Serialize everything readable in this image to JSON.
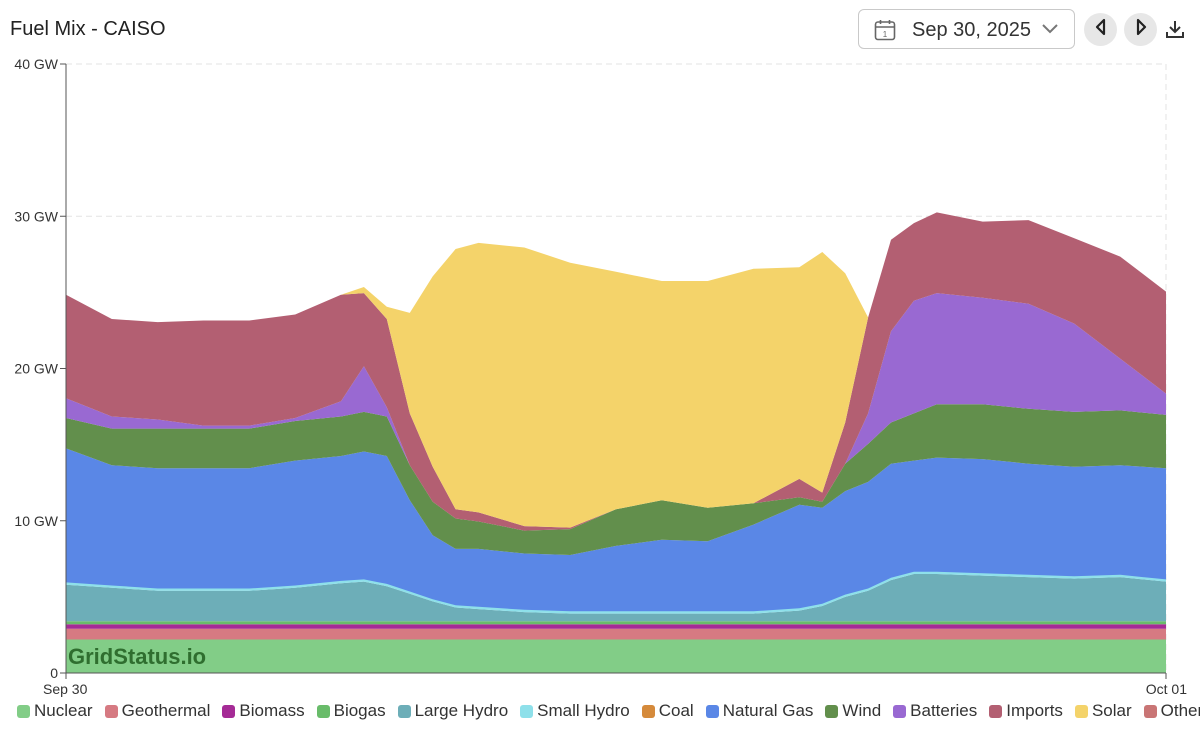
{
  "header": {
    "title": "Fuel Mix - CAISO",
    "date": "Sep 30, 2025"
  },
  "watermark": "GridStatus.io",
  "chart_data": {
    "type": "area",
    "stacked": true,
    "title": "Fuel Mix - CAISO",
    "xlabel": "",
    "ylabel": "",
    "ylim": [
      0,
      40
    ],
    "x_hours": [
      0,
      1,
      2,
      3,
      4,
      5,
      6,
      6.5,
      7,
      7.5,
      8,
      8.5,
      9,
      10,
      11,
      12,
      13,
      14,
      15,
      16,
      16.5,
      17,
      17.5,
      18,
      18.5,
      19,
      20,
      21,
      22,
      23,
      24
    ],
    "x_tick_labels": [
      "Sep 30",
      "Oct 01"
    ],
    "y_tick_labels": [
      "0",
      "10 GW",
      "20 GW",
      "30 GW",
      "40 GW"
    ],
    "y_tick_values": [
      0,
      10,
      20,
      30,
      40
    ],
    "gridlines": true,
    "legend_position": "bottom",
    "series": [
      {
        "name": "Nuclear",
        "color": "#82cd87",
        "values": [
          2.2,
          2.2,
          2.2,
          2.2,
          2.2,
          2.2,
          2.2,
          2.2,
          2.2,
          2.2,
          2.2,
          2.2,
          2.2,
          2.2,
          2.2,
          2.2,
          2.2,
          2.2,
          2.2,
          2.2,
          2.2,
          2.2,
          2.2,
          2.2,
          2.2,
          2.2,
          2.2,
          2.2,
          2.2,
          2.2,
          2.2
        ]
      },
      {
        "name": "Geothermal",
        "color": "#d67a82",
        "values": [
          0.7,
          0.7,
          0.7,
          0.7,
          0.7,
          0.7,
          0.7,
          0.7,
          0.7,
          0.7,
          0.7,
          0.7,
          0.7,
          0.7,
          0.7,
          0.7,
          0.7,
          0.7,
          0.7,
          0.7,
          0.7,
          0.7,
          0.7,
          0.7,
          0.7,
          0.7,
          0.7,
          0.7,
          0.7,
          0.7,
          0.7
        ]
      },
      {
        "name": "Biomass",
        "color": "#a52b96",
        "values": [
          0.3,
          0.3,
          0.3,
          0.3,
          0.3,
          0.3,
          0.3,
          0.3,
          0.3,
          0.3,
          0.3,
          0.3,
          0.3,
          0.3,
          0.3,
          0.3,
          0.3,
          0.3,
          0.3,
          0.3,
          0.3,
          0.3,
          0.3,
          0.3,
          0.3,
          0.3,
          0.3,
          0.3,
          0.3,
          0.3,
          0.3
        ]
      },
      {
        "name": "Biogas",
        "color": "#69bc6a",
        "values": [
          0.2,
          0.2,
          0.2,
          0.2,
          0.2,
          0.2,
          0.2,
          0.2,
          0.2,
          0.2,
          0.2,
          0.2,
          0.2,
          0.2,
          0.2,
          0.2,
          0.2,
          0.2,
          0.2,
          0.2,
          0.2,
          0.2,
          0.2,
          0.2,
          0.2,
          0.2,
          0.2,
          0.2,
          0.2,
          0.2,
          0.2
        ]
      },
      {
        "name": "Large Hydro",
        "color": "#6daeb8",
        "values": [
          2.4,
          2.2,
          2.0,
          2.0,
          2.0,
          2.2,
          2.5,
          2.6,
          2.3,
          1.8,
          1.3,
          0.9,
          0.8,
          0.6,
          0.5,
          0.5,
          0.5,
          0.5,
          0.5,
          0.7,
          1.0,
          1.6,
          2.0,
          2.7,
          3.1,
          3.1,
          3.0,
          2.9,
          2.8,
          2.9,
          2.6
        ]
      },
      {
        "name": "Small Hydro",
        "color": "#8ee0ea",
        "values": [
          0.15,
          0.15,
          0.15,
          0.15,
          0.15,
          0.15,
          0.15,
          0.15,
          0.15,
          0.15,
          0.15,
          0.15,
          0.15,
          0.15,
          0.15,
          0.15,
          0.15,
          0.15,
          0.15,
          0.15,
          0.15,
          0.15,
          0.15,
          0.15,
          0.15,
          0.15,
          0.15,
          0.15,
          0.15,
          0.15,
          0.15
        ]
      },
      {
        "name": "Coal",
        "color": "#d58a3b",
        "values": [
          0,
          0,
          0,
          0,
          0,
          0,
          0,
          0,
          0,
          0,
          0,
          0,
          0,
          0,
          0,
          0,
          0,
          0,
          0,
          0,
          0,
          0,
          0,
          0,
          0,
          0,
          0,
          0,
          0,
          0,
          0
        ]
      },
      {
        "name": "Natural Gas",
        "color": "#5a87e6",
        "values": [
          8.8,
          7.9,
          7.9,
          7.9,
          7.9,
          8.2,
          8.2,
          8.4,
          8.4,
          6.0,
          4.2,
          3.7,
          3.8,
          3.7,
          3.7,
          4.3,
          4.7,
          4.6,
          5.7,
          6.8,
          6.3,
          6.8,
          7.0,
          7.5,
          7.3,
          7.5,
          7.5,
          7.3,
          7.2,
          7.2,
          7.3
        ]
      },
      {
        "name": "Wind",
        "color": "#628f4c",
        "values": [
          2.0,
          2.4,
          2.6,
          2.6,
          2.6,
          2.6,
          2.6,
          2.6,
          2.6,
          2.3,
          2.2,
          2.0,
          1.8,
          1.5,
          1.7,
          2.4,
          2.6,
          2.2,
          1.4,
          0.5,
          0.4,
          1.8,
          2.5,
          2.7,
          3.1,
          3.5,
          3.6,
          3.6,
          3.6,
          3.6,
          3.5
        ]
      },
      {
        "name": "Batteries",
        "color": "#9969d2",
        "values": [
          1.3,
          0.8,
          0.6,
          0.2,
          0.2,
          0.2,
          1.0,
          3.0,
          0.6,
          0,
          0,
          0,
          0,
          0,
          0,
          0,
          0,
          0,
          0,
          0,
          0,
          0,
          2.0,
          6.0,
          7.4,
          7.3,
          7.0,
          6.9,
          5.8,
          3.4,
          1.4
        ]
      },
      {
        "name": "Imports",
        "color": "#b35f72",
        "values": [
          6.8,
          6.4,
          6.4,
          6.9,
          6.9,
          6.8,
          7.0,
          4.8,
          5.8,
          3.4,
          2.3,
          0.6,
          0.6,
          0.3,
          0.1,
          0,
          0,
          0,
          0,
          1.2,
          0.6,
          2.7,
          6.3,
          6.0,
          5.1,
          5.3,
          5.0,
          5.5,
          5.6,
          6.7,
          6.7
        ]
      },
      {
        "name": "Solar",
        "color": "#f4d36a",
        "values": [
          0,
          0,
          0,
          0,
          0,
          0,
          0,
          0.4,
          0.8,
          6.6,
          12.5,
          17.1,
          17.7,
          18.3,
          17.4,
          15.6,
          14.4,
          14.9,
          15.4,
          13.9,
          15.8,
          9.8,
          0,
          0,
          0,
          0,
          0,
          0,
          0,
          0,
          0
        ]
      },
      {
        "name": "Other",
        "color": "#c97575",
        "values": [
          0,
          0,
          0,
          0,
          0,
          0,
          0,
          0,
          0,
          0,
          0,
          0,
          0,
          0,
          0,
          0,
          0,
          0,
          0,
          0,
          0,
          0,
          0,
          0,
          0,
          0,
          0,
          0,
          0,
          0,
          0
        ]
      }
    ]
  }
}
